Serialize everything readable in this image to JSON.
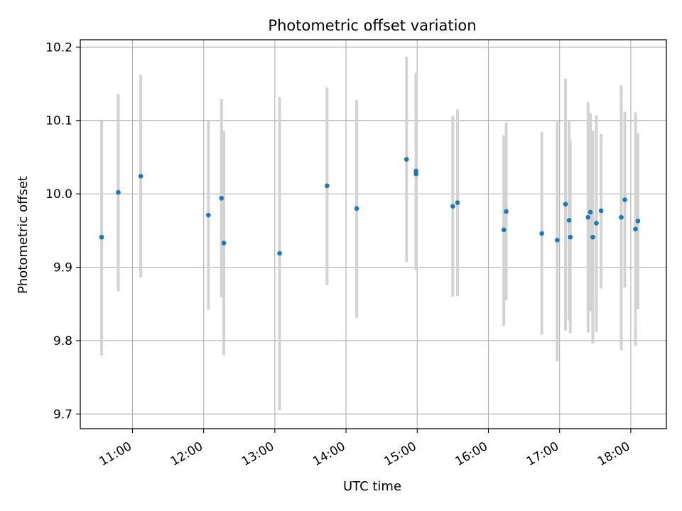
{
  "chart_data": {
    "type": "scatter",
    "title": "Photometric offset variation",
    "xlabel": "UTC time",
    "ylabel": "Photometric offset",
    "xlim": [
      "10:16",
      "18:30"
    ],
    "ylim": [
      9.68,
      10.21
    ],
    "x_ticks": [
      "11:00",
      "12:00",
      "13:00",
      "14:00",
      "15:00",
      "16:00",
      "17:00",
      "18:00"
    ],
    "y_ticks": [
      9.7,
      9.8,
      9.9,
      10.0,
      10.1,
      10.2
    ],
    "grid": true,
    "colors": {
      "point": "#1f77b4",
      "errorbar": "#d3d3d3",
      "grid": "#b0b0b0"
    },
    "points": [
      {
        "x": "10:34",
        "y": 9.941,
        "low": 9.78,
        "high": 10.1
      },
      {
        "x": "10:48",
        "y": 10.002,
        "low": 9.867,
        "high": 10.136
      },
      {
        "x": "11:07",
        "y": 10.024,
        "low": 9.886,
        "high": 10.162
      },
      {
        "x": "12:04",
        "y": 9.971,
        "low": 9.842,
        "high": 10.1
      },
      {
        "x": "12:15",
        "y": 9.994,
        "low": 9.859,
        "high": 10.129
      },
      {
        "x": "12:17",
        "y": 9.933,
        "low": 9.78,
        "high": 10.086
      },
      {
        "x": "13:04",
        "y": 9.919,
        "low": 9.705,
        "high": 10.132
      },
      {
        "x": "13:44",
        "y": 10.011,
        "low": 9.876,
        "high": 10.145
      },
      {
        "x": "14:09",
        "y": 9.98,
        "low": 9.831,
        "high": 10.128
      },
      {
        "x": "14:51",
        "y": 10.047,
        "low": 9.907,
        "high": 10.187
      },
      {
        "x": "14:59",
        "y": 10.031,
        "low": 9.896,
        "high": 10.165
      },
      {
        "x": "14:59",
        "y": 10.027,
        "low": 9.896,
        "high": 10.165
      },
      {
        "x": "15:30",
        "y": 9.983,
        "low": 9.86,
        "high": 10.106
      },
      {
        "x": "15:34",
        "y": 9.988,
        "low": 9.861,
        "high": 10.115
      },
      {
        "x": "16:13",
        "y": 9.951,
        "low": 9.82,
        "high": 10.08
      },
      {
        "x": "16:15",
        "y": 9.976,
        "low": 9.855,
        "high": 10.097
      },
      {
        "x": "16:45",
        "y": 9.946,
        "low": 9.808,
        "high": 10.084
      },
      {
        "x": "16:58",
        "y": 9.937,
        "low": 9.772,
        "high": 10.101
      },
      {
        "x": "17:05",
        "y": 9.986,
        "low": 9.814,
        "high": 10.157
      },
      {
        "x": "17:08",
        "y": 9.964,
        "low": 9.827,
        "high": 10.1
      },
      {
        "x": "17:09",
        "y": 9.941,
        "low": 9.81,
        "high": 10.072
      },
      {
        "x": "17:24",
        "y": 9.968,
        "low": 9.811,
        "high": 10.125
      },
      {
        "x": "17:26",
        "y": 9.975,
        "low": 9.84,
        "high": 10.11
      },
      {
        "x": "17:28",
        "y": 9.941,
        "low": 9.796,
        "high": 10.086
      },
      {
        "x": "17:31",
        "y": 9.96,
        "low": 9.812,
        "high": 10.107
      },
      {
        "x": "17:35",
        "y": 9.977,
        "low": 9.871,
        "high": 10.082
      },
      {
        "x": "17:52",
        "y": 9.968,
        "low": 9.787,
        "high": 10.148
      },
      {
        "x": "17:55",
        "y": 9.992,
        "low": 9.872,
        "high": 10.112
      },
      {
        "x": "18:04",
        "y": 9.952,
        "low": 9.793,
        "high": 10.111
      },
      {
        "x": "18:06",
        "y": 9.963,
        "low": 9.843,
        "high": 10.083
      }
    ]
  }
}
